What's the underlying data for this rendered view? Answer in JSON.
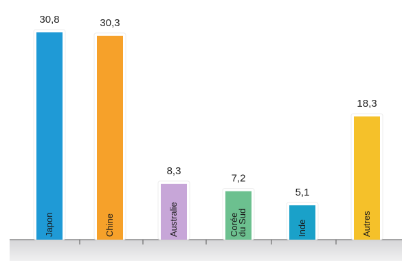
{
  "chart_data": {
    "type": "bar",
    "categories": [
      "Japon",
      "Chine",
      "Australie",
      "Corée du Sud",
      "Inde",
      "Autres"
    ],
    "category_lines": [
      [
        "Japon"
      ],
      [
        "Chine"
      ],
      [
        "Australie"
      ],
      [
        "Corée",
        "du Sud"
      ],
      [
        "Inde"
      ],
      [
        "Autres"
      ]
    ],
    "values": [
      30.8,
      30.3,
      8.3,
      7.2,
      5.1,
      18.3
    ],
    "value_labels": [
      "30,8",
      "30,3",
      "8,3",
      "7,2",
      "5,1",
      "18,3"
    ],
    "colors": [
      "#1f9ad6",
      "#f6a12a",
      "#c7a6d8",
      "#6cc08f",
      "#1aa1c9",
      "#f5c12a"
    ],
    "ylim": [
      0,
      30.8
    ],
    "grid": false,
    "legend": "none",
    "title": "",
    "xlabel": "",
    "ylabel": ""
  }
}
